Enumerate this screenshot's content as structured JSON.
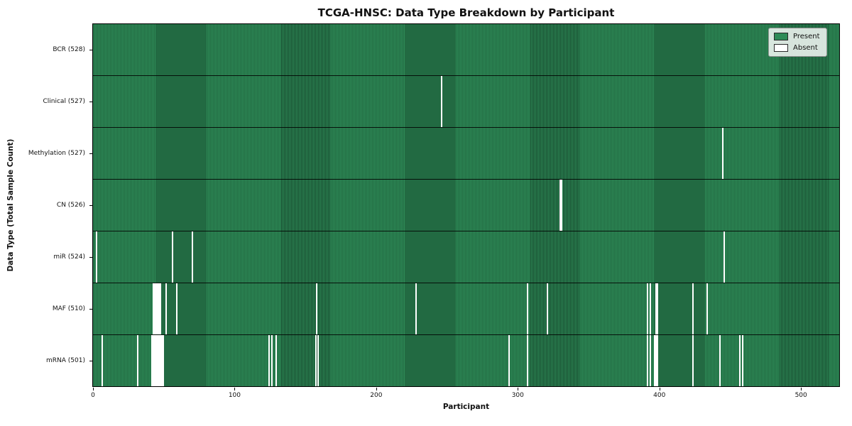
{
  "title": "TCGA-HNSC: Data Type Breakdown by Participant",
  "legend": {
    "present_label": "Present",
    "absent_label": "Absent"
  },
  "colors": {
    "present_fill": "#2e8b57",
    "present_edge": "#17492e",
    "absent": "#ffffff"
  },
  "chart_data": {
    "type": "heatmap",
    "title": "TCGA-HNSC: Data Type Breakdown by Participant",
    "xlabel": "Participant",
    "ylabel": "Data Type (Total Sample Count)",
    "x_range": [
      0,
      528
    ],
    "x_ticks": [
      0,
      100,
      200,
      300,
      400,
      500
    ],
    "grid": false,
    "legend_position": "upper right",
    "legend_entries": [
      "Present",
      "Absent"
    ],
    "n_participants": 528,
    "rows": [
      {
        "label": "BCR (528)",
        "data_type": "BCR",
        "total": 528,
        "absent_participants": []
      },
      {
        "label": "Clinical (527)",
        "data_type": "Clinical",
        "total": 527,
        "absent_participants": [
          246
        ]
      },
      {
        "label": "Methylation (527)",
        "data_type": "Methylation",
        "total": 527,
        "absent_participants": [
          445
        ]
      },
      {
        "label": "CN (526)",
        "data_type": "CN",
        "total": 526,
        "absent_participants": [
          330,
          331
        ]
      },
      {
        "label": "miR (524)",
        "data_type": "miR",
        "total": 524,
        "absent_participants": [
          2,
          56,
          70,
          446
        ]
      },
      {
        "label": "MAF (510)",
        "data_type": "MAF",
        "total": 510,
        "absent_participants": [
          42,
          43,
          44,
          45,
          46,
          47,
          51,
          59,
          158,
          228,
          307,
          321,
          392,
          394,
          398,
          399,
          424,
          434
        ]
      },
      {
        "label": "mRNA (501)",
        "data_type": "mRNA",
        "total": 501,
        "absent_participants": [
          6,
          31,
          41,
          42,
          43,
          44,
          45,
          46,
          47,
          48,
          49,
          124,
          126,
          129,
          157,
          159,
          294,
          307,
          392,
          394,
          397,
          398,
          399,
          424,
          443,
          457,
          459
        ]
      }
    ]
  }
}
